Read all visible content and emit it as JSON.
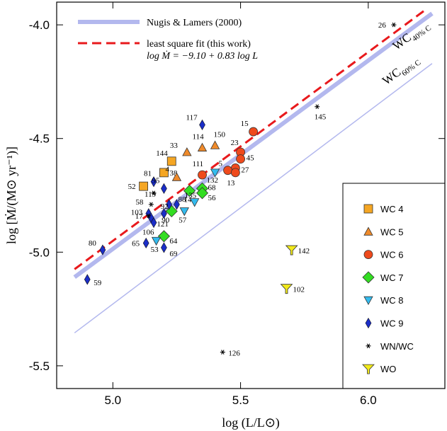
{
  "chart_data": {
    "type": "scatter",
    "xlabel": "log (L/L⊙)",
    "ylabel": "log [Ṁ/(M⊙ yr⁻¹)]",
    "xlim": [
      4.78,
      6.3
    ],
    "ylim": [
      -5.6,
      -3.9
    ],
    "xticks": [
      {
        "v": 5.0,
        "t": "5.0"
      },
      {
        "v": 5.5,
        "t": "5.5"
      },
      {
        "v": 6.0,
        "t": "6.0"
      }
    ],
    "yticks": [
      {
        "v": -4.0,
        "t": "-4.0"
      },
      {
        "v": -4.5,
        "t": "-4.5"
      },
      {
        "v": -5.0,
        "t": "-5.0"
      },
      {
        "v": -5.5,
        "t": "-5.5"
      }
    ],
    "lines": [
      {
        "name": "Nugis & Lamers (2000)",
        "label": "WC",
        "sub": "40% C",
        "x": [
          4.85,
          6.25
        ],
        "y": [
          -5.11,
          -3.95
        ],
        "color": "#b3b8ee",
        "width": 6,
        "dash": "none"
      },
      {
        "name": "least square fit (this work)",
        "x": [
          4.85,
          6.22
        ],
        "y": [
          -5.075,
          -3.937
        ],
        "color": "#e8191c",
        "width": 3,
        "dash": "13,7"
      },
      {
        "name": "",
        "label": "WC",
        "sub": "60% C",
        "x": [
          4.85,
          6.25
        ],
        "y": [
          -5.355,
          -4.17
        ],
        "color": "#b3b8ee",
        "width": 1.5,
        "dash": "none"
      }
    ],
    "fit_equation": "log Ṁ = −9.10 + 0.83 log L",
    "series": [
      {
        "name": "WC 4",
        "marker": "square",
        "color": "#f5a623",
        "points": [
          {
            "x": 5.23,
            "y": -4.6,
            "label": "144"
          },
          {
            "x": 5.2,
            "y": -4.65,
            "label": "38"
          },
          {
            "x": 5.12,
            "y": -4.71,
            "label": "52"
          }
        ]
      },
      {
        "name": "WC 5",
        "marker": "triangle-up",
        "color": "#ef8a2a",
        "points": [
          {
            "x": 5.29,
            "y": -4.56,
            "label": "33"
          },
          {
            "x": 5.35,
            "y": -4.54,
            "label": "114"
          },
          {
            "x": 5.4,
            "y": -4.53,
            "label": "150"
          },
          {
            "x": 5.25,
            "y": -4.67,
            "label": "4"
          }
        ]
      },
      {
        "name": "WC 6",
        "marker": "circle",
        "color": "#ef4a1c",
        "points": [
          {
            "x": 5.55,
            "y": -4.47,
            "label": "15"
          },
          {
            "x": 5.5,
            "y": -4.56,
            "label": "23"
          },
          {
            "x": 5.5,
            "y": -4.59,
            "label": "45"
          },
          {
            "x": 5.48,
            "y": -4.63,
            "label": "27"
          },
          {
            "x": 5.45,
            "y": -4.64,
            "label": "5"
          },
          {
            "x": 5.48,
            "y": -4.65,
            "label": "13"
          },
          {
            "x": 5.35,
            "y": -4.66,
            "label": "111"
          }
        ]
      },
      {
        "name": "WC 7",
        "marker": "diamond",
        "color": "#33dd22",
        "points": [
          {
            "x": 5.35,
            "y": -4.72,
            "label": "68"
          },
          {
            "x": 5.35,
            "y": -4.74,
            "label": "56"
          },
          {
            "x": 5.3,
            "y": -4.73,
            "label": "14"
          },
          {
            "x": 5.23,
            "y": -4.82,
            "label": "90"
          },
          {
            "x": 5.2,
            "y": -4.93,
            "label": "64"
          }
        ]
      },
      {
        "name": "WC 8",
        "marker": "triangle-down",
        "color": "#33bbee",
        "points": [
          {
            "x": 5.4,
            "y": -4.65,
            "label": "132"
          },
          {
            "x": 5.32,
            "y": -4.78,
            "label": "135"
          },
          {
            "x": 5.28,
            "y": -4.82,
            "label": "57"
          },
          {
            "x": 5.17,
            "y": -4.95,
            "label": "53"
          }
        ]
      },
      {
        "name": "WC 9",
        "marker": "thin-diamond",
        "color": "#1b2ec8",
        "points": [
          {
            "x": 5.35,
            "y": -4.44,
            "label": "117"
          },
          {
            "x": 5.16,
            "y": -4.69,
            "label": "81"
          },
          {
            "x": 5.2,
            "y": -4.72,
            "label": "95"
          },
          {
            "x": 5.22,
            "y": -4.79,
            "label": "92"
          },
          {
            "x": 5.25,
            "y": -4.79,
            "label": "88"
          },
          {
            "x": 5.14,
            "y": -4.83,
            "label": "103"
          },
          {
            "x": 5.15,
            "y": -4.85,
            "label": "121"
          },
          {
            "x": 5.2,
            "y": -4.83,
            "label": ""
          },
          {
            "x": 5.16,
            "y": -4.87,
            "label": "106"
          },
          {
            "x": 5.13,
            "y": -4.96,
            "label": "65"
          },
          {
            "x": 5.2,
            "y": -4.98,
            "label": "69"
          },
          {
            "x": 4.96,
            "y": -4.99,
            "label": "80"
          },
          {
            "x": 4.9,
            "y": -5.12,
            "label": "59"
          }
        ]
      },
      {
        "name": "WN/WC",
        "marker": "star",
        "color": "#000000",
        "points": [
          {
            "x": 6.1,
            "y": -4.0,
            "label": "26"
          },
          {
            "x": 5.8,
            "y": -4.36,
            "label": "145"
          },
          {
            "x": 5.15,
            "y": -4.79,
            "label": "58"
          },
          {
            "x": 5.16,
            "y": -4.74,
            "label": "119"
          },
          {
            "x": 5.14,
            "y": -4.84,
            "label": "17"
          },
          {
            "x": 5.43,
            "y": -5.44,
            "label": "126"
          }
        ]
      },
      {
        "name": "WO",
        "marker": "funnel",
        "color": "#f2ea1a",
        "points": [
          {
            "x": 5.7,
            "y": -4.99,
            "label": "142"
          },
          {
            "x": 5.68,
            "y": -5.16,
            "label": "102"
          }
        ]
      }
    ]
  }
}
